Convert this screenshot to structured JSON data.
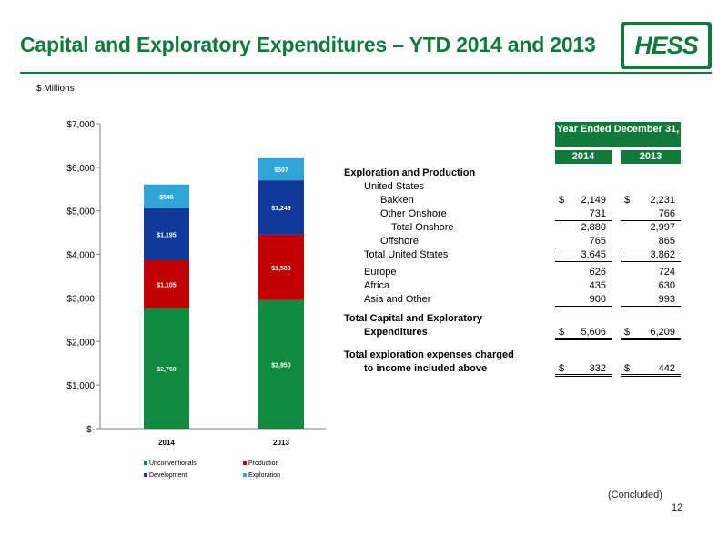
{
  "header": {
    "title": "Capital and Exploratory Expenditures – YTD 2014 and 2013",
    "logo_text": "HESS",
    "units": "$ Millions"
  },
  "colors": {
    "brand_green": "#0f7a3c",
    "unconventionals": "#0f8a3e",
    "production": "#c00000",
    "development": "#0f3a99",
    "exploration": "#2fa4d6"
  },
  "chart_data": {
    "type": "bar",
    "stacked": true,
    "categories": [
      "2014",
      "2013"
    ],
    "series": [
      {
        "name": "Unconventionals",
        "values": [
          2760,
          2950
        ],
        "labels": [
          "$2,760",
          "$2,950"
        ],
        "color": "#0f8a3e"
      },
      {
        "name": "Production",
        "values": [
          1105,
          1503
        ],
        "labels": [
          "$1,105",
          "$1,503"
        ],
        "color": "#c00000"
      },
      {
        "name": "Development",
        "values": [
          1195,
          1249
        ],
        "labels": [
          "$1,195",
          "$1,249"
        ],
        "color": "#0f3a99"
      },
      {
        "name": "Exploration",
        "values": [
          546,
          507
        ],
        "labels": [
          "$546",
          "$507"
        ],
        "color": "#2fa4d6"
      }
    ],
    "ylim": [
      0,
      7000
    ],
    "yticks": [
      0,
      1000,
      2000,
      3000,
      4000,
      5000,
      6000,
      7000
    ],
    "ytick_labels": [
      "$-",
      "$1,000",
      "$2,000",
      "$3,000",
      "$4,000",
      "$5,000",
      "$6,000",
      "$7,000"
    ],
    "grid": false,
    "legend_position": "bottom"
  },
  "table": {
    "header": "Year Ended December 31,",
    "years": [
      "2014",
      "2013"
    ],
    "rows": [
      {
        "label": "Exploration and Production",
        "bold": true
      },
      {
        "label": "United States",
        "indent": 1
      },
      {
        "label": "Bakken",
        "indent": 2,
        "cur": "$",
        "v1": "2,149",
        "v2": "2,231"
      },
      {
        "label": "Other Onshore",
        "indent": 2,
        "v1": "731",
        "v2": "766",
        "line": "single"
      },
      {
        "label": "Total Onshore",
        "indent": 3,
        "v1": "2,880",
        "v2": "2,997"
      },
      {
        "label": "Offshore",
        "indent": 2,
        "v1": "765",
        "v2": "865",
        "line": "single"
      },
      {
        "label": "Total United States",
        "indent": 1,
        "v1": "3,645",
        "v2": "3,862",
        "line": "single"
      },
      {
        "label": "Europe",
        "indent": 1,
        "v1": "626",
        "v2": "724",
        "gap": 4
      },
      {
        "label": "Africa",
        "indent": 1,
        "v1": "435",
        "v2": "630"
      },
      {
        "label": "Asia and Other",
        "indent": 1,
        "v1": "900",
        "v2": "993",
        "line": "single"
      },
      {
        "label": "Total Capital and Exploratory",
        "bold": true,
        "gap": 6
      },
      {
        "label": "Expenditures",
        "bold": true,
        "indent": 1,
        "cur": "$",
        "v1": "5,606",
        "v2": "6,209",
        "line": "double"
      },
      {
        "label": "Total exploration expenses charged",
        "bold": true,
        "gap": 10
      },
      {
        "label": "to income included above",
        "bold": true,
        "indent": 1,
        "cur": "$",
        "v1": "332",
        "v2": "442",
        "line": "double"
      }
    ]
  },
  "footer": {
    "concluded": "(Concluded)",
    "page_number": "12"
  }
}
